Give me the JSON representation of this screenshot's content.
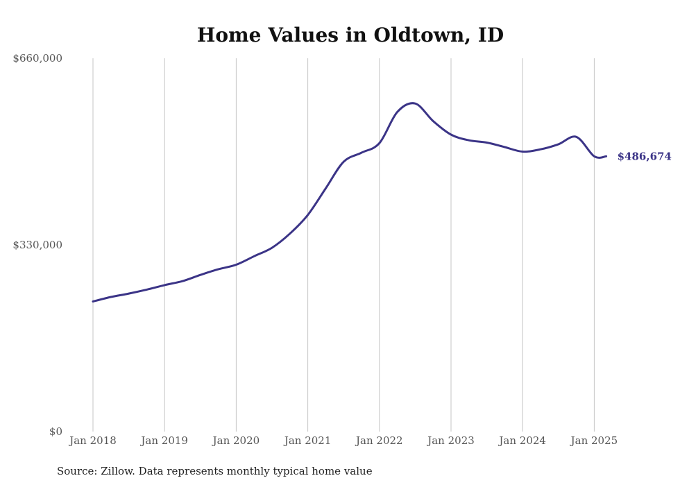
{
  "chart_data": {
    "type": "line",
    "title": "Home Values in Oldtown, ID",
    "xlabel": "",
    "ylabel": "",
    "x_tick_labels": [
      "Jan 2018",
      "Jan 2019",
      "Jan 2020",
      "Jan 2021",
      "Jan 2022",
      "Jan 2023",
      "Jan 2024",
      "Jan 2025"
    ],
    "y_tick_labels": [
      "$0",
      "$330,000",
      "$660,000"
    ],
    "y_ticks": [
      0,
      330000,
      660000
    ],
    "ylim": [
      0,
      660000
    ],
    "xlim": [
      "2018-01",
      "2025-03"
    ],
    "grid": "vertical at January of each year",
    "legend": "none",
    "end_label": "$486,674",
    "color": "#3b3487",
    "series": [
      {
        "x": [
          "2018-01",
          "2018-04",
          "2018-07",
          "2018-10",
          "2019-01",
          "2019-04",
          "2019-07",
          "2019-10",
          "2020-01",
          "2020-04",
          "2020-07",
          "2020-10",
          "2021-01",
          "2021-04",
          "2021-07",
          "2021-10",
          "2022-01",
          "2022-04",
          "2022-07",
          "2022-10",
          "2023-01",
          "2023-04",
          "2023-07",
          "2023-10",
          "2024-01",
          "2024-04",
          "2024-07",
          "2024-10",
          "2025-01",
          "2025-03"
        ],
        "values": [
          230000,
          238000,
          244000,
          251000,
          259000,
          266000,
          277000,
          287000,
          295000,
          310000,
          325000,
          350000,
          383000,
          430000,
          477000,
          493000,
          510000,
          565000,
          580000,
          549000,
          525000,
          515000,
          511000,
          503000,
          495000,
          499000,
          508000,
          521000,
          486674,
          486674
        ]
      }
    ],
    "source": "Source: Zillow. Data represents monthly typical home value"
  }
}
